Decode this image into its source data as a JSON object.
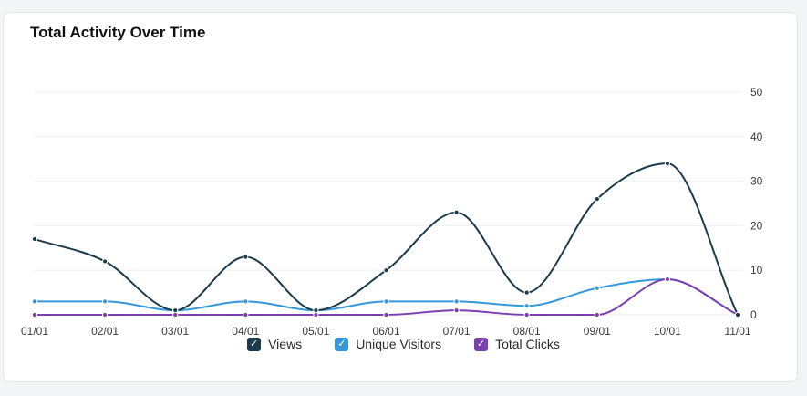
{
  "card": {
    "title": "Total Activity Over Time"
  },
  "chart_data": {
    "type": "line",
    "title": "Total Activity Over Time",
    "categories": [
      "01/01",
      "02/01",
      "03/01",
      "04/01",
      "05/01",
      "06/01",
      "07/01",
      "08/01",
      "09/01",
      "10/01",
      "11/01"
    ],
    "ylim": [
      0,
      50
    ],
    "yticks": [
      "0",
      "10",
      "20",
      "30",
      "40",
      "50"
    ],
    "y_axis_side": "right",
    "grid": true,
    "legend_position": "bottom-center",
    "series": [
      {
        "name": "Views",
        "color": "#1b3a4b",
        "values": [
          17,
          12,
          1,
          13,
          1,
          10,
          23,
          5,
          26,
          34,
          0
        ]
      },
      {
        "name": "Unique Visitors",
        "color": "#3498db",
        "values": [
          3,
          3,
          1,
          3,
          1,
          3,
          3,
          2,
          6,
          8,
          0
        ]
      },
      {
        "name": "Total Clicks",
        "color": "#7b3fb0",
        "values": [
          0,
          0,
          0,
          0,
          0,
          0,
          1,
          0,
          0,
          8,
          0
        ]
      }
    ]
  },
  "legend": {
    "check_glyph": "✓",
    "items": [
      {
        "label": "Views",
        "color": "#1b3a4b"
      },
      {
        "label": "Unique Visitors",
        "color": "#3498db"
      },
      {
        "label": "Total Clicks",
        "color": "#7b3fb0"
      }
    ]
  }
}
